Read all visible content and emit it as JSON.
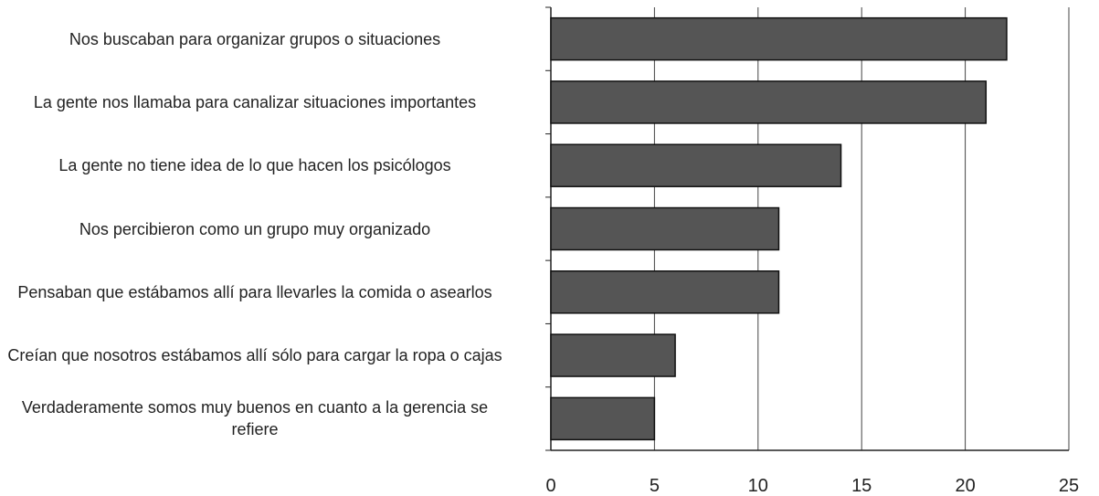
{
  "chart_data": {
    "type": "bar",
    "orientation": "horizontal",
    "categories": [
      "Nos buscaban para organizar grupos o situaciones",
      "La gente nos llamaba para canalizar situaciones importantes",
      "La gente no tiene idea de lo que hacen los psicólogos",
      "Nos percibieron como un grupo muy organizado",
      "Pensaban que estábamos allí para llevarles la comida o asearlos",
      "Creían que nosotros estábamos allí sólo para cargar la ropa o cajas",
      "Verdaderamente somos muy buenos en cuanto a la gerencia se refiere"
    ],
    "values": [
      22,
      21,
      14,
      11,
      11,
      6,
      5
    ],
    "color": "#555555",
    "xlim": [
      0,
      25
    ],
    "xticks": [
      0,
      5,
      10,
      15,
      20,
      25
    ],
    "grid": true
  }
}
